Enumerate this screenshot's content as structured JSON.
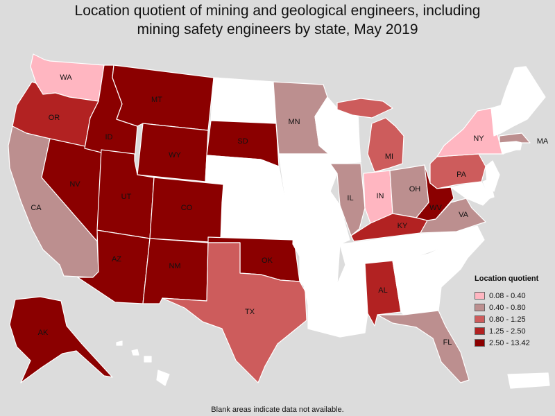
{
  "title_line1": "Location quotient of mining and geological engineers, including",
  "title_line2": "mining safety engineers by state, May 2019",
  "footnote": "Blank areas indicate data not available.",
  "colors": {
    "background": "#dcdcdc",
    "no_data": "#ffffff",
    "class0": "#ffb6c1",
    "class1": "#bc8f8f",
    "class2": "#cd5c5c",
    "class3": "#b22222",
    "class4": "#8b0000"
  },
  "legend": {
    "title": "Location quotient",
    "items": [
      {
        "label": "0.08 - 0.40",
        "color": "#ffb6c1"
      },
      {
        "label": "0.40 - 0.80",
        "color": "#bc8f8f"
      },
      {
        "label": "0.80 - 1.25",
        "color": "#cd5c5c"
      },
      {
        "label": "1.25 - 2.50",
        "color": "#b22222"
      },
      {
        "label": "2.50 - 13.42",
        "color": "#8b0000"
      }
    ]
  },
  "states": {
    "WA": 0,
    "OR": 3,
    "CA": 1,
    "NV": 4,
    "ID": 4,
    "MT": 4,
    "WY": 4,
    "UT": 4,
    "AZ": 4,
    "CO": 4,
    "NM": 4,
    "ND": null,
    "SD": 4,
    "NE": null,
    "KS": null,
    "OK": 4,
    "TX": 2,
    "MN": 1,
    "IA": null,
    "MO": null,
    "AR": null,
    "LA": null,
    "WI": null,
    "IL": 1,
    "MI": 2,
    "IN": 0,
    "OH": 1,
    "KY": 3,
    "TN": null,
    "MS": null,
    "AL": 3,
    "GA": null,
    "FL": 1,
    "SC": null,
    "NC": null,
    "VA": 1,
    "WV": 4,
    "PA": 2,
    "NY": 0,
    "MD": null,
    "DE": null,
    "NJ": null,
    "CT": null,
    "RI": null,
    "MA": 1,
    "VT": null,
    "NH": null,
    "ME": null,
    "AK": 4,
    "HI": null,
    "PR": null,
    "DC": null
  },
  "state_labels": [
    "WA",
    "OR",
    "CA",
    "NV",
    "ID",
    "MT",
    "WY",
    "UT",
    "AZ",
    "CO",
    "NM",
    "SD",
    "OK",
    "TX",
    "MN",
    "IL",
    "MI",
    "IN",
    "OH",
    "KY",
    "AL",
    "FL",
    "VA",
    "WV",
    "PA",
    "NY",
    "MA",
    "AK"
  ]
}
